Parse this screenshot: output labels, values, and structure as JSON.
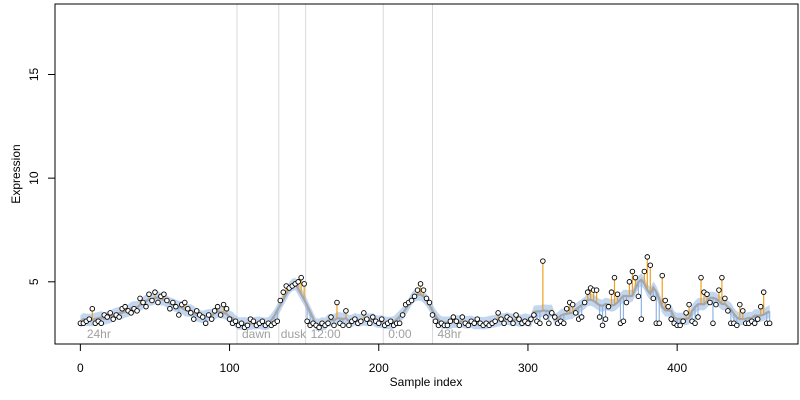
{
  "chart_data": {
    "type": "scatter",
    "title": "",
    "xlabel": "Sample index",
    "ylabel": "Expression",
    "xlim": [
      -17,
      481
    ],
    "ylim": [
      2.0,
      18.4
    ],
    "xticks": [
      0,
      100,
      200,
      300,
      400
    ],
    "yticks": [
      5,
      10,
      15
    ],
    "grid": false,
    "legend": "none",
    "colors": {
      "fit_line": "#a6a6a6",
      "band": "#8fb4e3",
      "residual_up": "#f0a020",
      "residual_down": "#8fb4e3",
      "point_stroke": "#000000",
      "point_fill": "#ffffff",
      "separator": "#d9d9d9",
      "annotation": "#a0a0a0"
    },
    "separators": [
      105,
      133,
      151,
      203,
      236
    ],
    "annotations": [
      {
        "x": 3,
        "text": "24hr"
      },
      {
        "x": 107,
        "text": "dawn"
      },
      {
        "x": 133,
        "text": "dusk"
      },
      {
        "x": 153,
        "text": "12:00"
      },
      {
        "x": 205,
        "text": "0:00"
      },
      {
        "x": 238,
        "text": "48hr"
      }
    ],
    "points": [
      [
        0,
        3.0
      ],
      [
        2,
        3.0
      ],
      [
        4,
        3.1
      ],
      [
        6,
        3.2
      ],
      [
        8,
        3.7
      ],
      [
        10,
        3.0
      ],
      [
        12,
        3.1
      ],
      [
        14,
        3.0
      ],
      [
        16,
        3.4
      ],
      [
        18,
        3.3
      ],
      [
        20,
        3.5
      ],
      [
        22,
        3.2
      ],
      [
        24,
        3.4
      ],
      [
        26,
        3.3
      ],
      [
        28,
        3.7
      ],
      [
        30,
        3.8
      ],
      [
        32,
        3.6
      ],
      [
        34,
        3.5
      ],
      [
        36,
        3.7
      ],
      [
        38,
        3.6
      ],
      [
        40,
        4.2
      ],
      [
        42,
        4.0
      ],
      [
        44,
        3.8
      ],
      [
        46,
        4.4
      ],
      [
        48,
        4.1
      ],
      [
        50,
        4.5
      ],
      [
        52,
        4.0
      ],
      [
        54,
        4.3
      ],
      [
        56,
        4.4
      ],
      [
        58,
        4.1
      ],
      [
        60,
        3.7
      ],
      [
        62,
        4.0
      ],
      [
        64,
        3.8
      ],
      [
        66,
        3.4
      ],
      [
        68,
        3.9
      ],
      [
        70,
        4.0
      ],
      [
        72,
        3.7
      ],
      [
        74,
        3.5
      ],
      [
        76,
        3.2
      ],
      [
        78,
        3.6
      ],
      [
        80,
        3.4
      ],
      [
        82,
        3.3
      ],
      [
        84,
        3.0
      ],
      [
        86,
        3.4
      ],
      [
        88,
        3.2
      ],
      [
        90,
        3.6
      ],
      [
        92,
        3.8
      ],
      [
        94,
        3.4
      ],
      [
        96,
        3.9
      ],
      [
        98,
        3.7
      ],
      [
        100,
        3.2
      ],
      [
        102,
        3.0
      ],
      [
        104,
        3.1
      ],
      [
        106,
        2.9
      ],
      [
        108,
        3.0
      ],
      [
        110,
        2.8
      ],
      [
        112,
        2.9
      ],
      [
        114,
        3.2
      ],
      [
        116,
        3.1
      ],
      [
        118,
        2.9
      ],
      [
        120,
        3.0
      ],
      [
        122,
        3.1
      ],
      [
        124,
        2.9
      ],
      [
        126,
        3.0
      ],
      [
        128,
        2.9
      ],
      [
        130,
        3.0
      ],
      [
        132,
        3.1
      ],
      [
        134,
        4.1
      ],
      [
        136,
        4.5
      ],
      [
        138,
        4.8
      ],
      [
        140,
        4.7
      ],
      [
        142,
        4.8
      ],
      [
        144,
        4.9
      ],
      [
        146,
        5.0
      ],
      [
        148,
        5.2
      ],
      [
        150,
        4.9
      ],
      [
        152,
        3.1
      ],
      [
        154,
        2.9
      ],
      [
        156,
        3.0
      ],
      [
        158,
        2.9
      ],
      [
        160,
        2.8
      ],
      [
        162,
        3.0
      ],
      [
        164,
        2.9
      ],
      [
        166,
        3.0
      ],
      [
        168,
        3.3
      ],
      [
        170,
        2.9
      ],
      [
        172,
        4.0
      ],
      [
        174,
        3.0
      ],
      [
        176,
        2.9
      ],
      [
        178,
        3.6
      ],
      [
        180,
        2.9
      ],
      [
        182,
        3.1
      ],
      [
        184,
        3.2
      ],
      [
        186,
        3.0
      ],
      [
        188,
        3.1
      ],
      [
        190,
        3.5
      ],
      [
        192,
        3.2
      ],
      [
        194,
        3.0
      ],
      [
        196,
        3.3
      ],
      [
        198,
        3.1
      ],
      [
        200,
        3.0
      ],
      [
        202,
        3.2
      ],
      [
        204,
        2.9
      ],
      [
        206,
        3.0
      ],
      [
        208,
        3.1
      ],
      [
        210,
        2.9
      ],
      [
        212,
        3.0
      ],
      [
        214,
        3.0
      ],
      [
        216,
        3.4
      ],
      [
        218,
        3.9
      ],
      [
        220,
        4.0
      ],
      [
        222,
        4.1
      ],
      [
        224,
        4.3
      ],
      [
        226,
        4.6
      ],
      [
        228,
        4.9
      ],
      [
        230,
        4.6
      ],
      [
        232,
        4.2
      ],
      [
        234,
        4.0
      ],
      [
        236,
        3.4
      ],
      [
        238,
        3.1
      ],
      [
        240,
        2.9
      ],
      [
        242,
        3.0
      ],
      [
        244,
        2.9
      ],
      [
        246,
        2.9
      ],
      [
        248,
        3.1
      ],
      [
        250,
        3.3
      ],
      [
        252,
        3.1
      ],
      [
        254,
        2.9
      ],
      [
        256,
        3.3
      ],
      [
        258,
        3.0
      ],
      [
        260,
        2.9
      ],
      [
        262,
        3.1
      ],
      [
        264,
        3.0
      ],
      [
        266,
        3.2
      ],
      [
        268,
        3.0
      ],
      [
        270,
        2.9
      ],
      [
        272,
        3.0
      ],
      [
        274,
        2.9
      ],
      [
        276,
        3.0
      ],
      [
        278,
        3.1
      ],
      [
        280,
        3.5
      ],
      [
        282,
        3.2
      ],
      [
        284,
        3.0
      ],
      [
        286,
        3.3
      ],
      [
        288,
        3.2
      ],
      [
        290,
        3.0
      ],
      [
        292,
        3.4
      ],
      [
        294,
        3.2
      ],
      [
        296,
        3.0
      ],
      [
        298,
        3.1
      ],
      [
        300,
        3.0
      ],
      [
        302,
        3.2
      ],
      [
        304,
        3.4
      ],
      [
        306,
        3.1
      ],
      [
        308,
        3.0
      ],
      [
        310,
        6.0
      ],
      [
        312,
        3.3
      ],
      [
        314,
        3.0
      ],
      [
        316,
        3.5
      ],
      [
        318,
        3.3
      ],
      [
        320,
        3.0
      ],
      [
        322,
        3.1
      ],
      [
        324,
        3.0
      ],
      [
        326,
        3.7
      ],
      [
        328,
        4.0
      ],
      [
        330,
        3.9
      ],
      [
        332,
        3.5
      ],
      [
        334,
        3.2
      ],
      [
        336,
        3.3
      ],
      [
        338,
        4.0
      ],
      [
        340,
        4.5
      ],
      [
        342,
        4.7
      ],
      [
        344,
        4.6
      ],
      [
        346,
        4.6
      ],
      [
        348,
        3.3
      ],
      [
        350,
        2.9
      ],
      [
        352,
        3.2
      ],
      [
        354,
        3.8
      ],
      [
        356,
        4.5
      ],
      [
        358,
        5.2
      ],
      [
        360,
        4.4
      ],
      [
        362,
        3.0
      ],
      [
        364,
        3.1
      ],
      [
        366,
        4.0
      ],
      [
        368,
        5.0
      ],
      [
        370,
        5.5
      ],
      [
        372,
        5.2
      ],
      [
        374,
        4.3
      ],
      [
        376,
        3.2
      ],
      [
        378,
        5.5
      ],
      [
        380,
        6.2
      ],
      [
        382,
        5.8
      ],
      [
        384,
        4.2
      ],
      [
        386,
        3.0
      ],
      [
        388,
        3.0
      ],
      [
        390,
        5.3
      ],
      [
        392,
        4.1
      ],
      [
        394,
        3.8
      ],
      [
        396,
        3.2
      ],
      [
        398,
        3.0
      ],
      [
        400,
        2.9
      ],
      [
        402,
        2.9
      ],
      [
        404,
        3.1
      ],
      [
        406,
        3.5
      ],
      [
        408,
        3.9
      ],
      [
        410,
        3.1
      ],
      [
        412,
        3.0
      ],
      [
        414,
        3.3
      ],
      [
        416,
        5.2
      ],
      [
        418,
        4.5
      ],
      [
        420,
        4.4
      ],
      [
        422,
        4.0
      ],
      [
        424,
        3.0
      ],
      [
        426,
        3.9
      ],
      [
        428,
        4.6
      ],
      [
        430,
        5.2
      ],
      [
        432,
        4.2
      ],
      [
        434,
        3.6
      ],
      [
        436,
        3.0
      ],
      [
        438,
        3.0
      ],
      [
        440,
        2.9
      ],
      [
        442,
        3.9
      ],
      [
        444,
        3.6
      ],
      [
        446,
        3.0
      ],
      [
        448,
        3.0
      ],
      [
        450,
        3.1
      ],
      [
        452,
        3.0
      ],
      [
        454,
        3.2
      ],
      [
        456,
        3.8
      ],
      [
        458,
        4.5
      ],
      [
        460,
        3.0
      ],
      [
        462,
        3.0
      ]
    ]
  }
}
